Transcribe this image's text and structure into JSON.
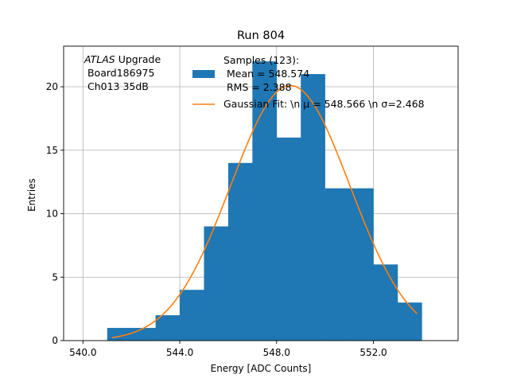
{
  "chart_data": {
    "type": "bar",
    "title": "Run 804",
    "xlabel": "Energy [ADC Counts]",
    "ylabel": "Entries",
    "xlim": [
      539.2,
      555.5
    ],
    "ylim": [
      0,
      23.2
    ],
    "x_ticks": [
      540,
      544,
      548,
      552
    ],
    "x_tick_labels": [
      "540.0",
      "544.0",
      "548.0",
      "552.0"
    ],
    "y_ticks": [
      0,
      5,
      10,
      15,
      20
    ],
    "y_tick_labels": [
      "0",
      "5",
      "10",
      "15",
      "20"
    ],
    "grid": true,
    "bar_color": "#1f77b4",
    "fit_color": "#ff7f0e",
    "bins": [
      {
        "x0": 541,
        "x1": 542,
        "count": 1
      },
      {
        "x0": 542,
        "x1": 543,
        "count": 1
      },
      {
        "x0": 543,
        "x1": 544,
        "count": 2
      },
      {
        "x0": 544,
        "x1": 545,
        "count": 4
      },
      {
        "x0": 545,
        "x1": 546,
        "count": 9
      },
      {
        "x0": 546,
        "x1": 547,
        "count": 14
      },
      {
        "x0": 547,
        "x1": 548,
        "count": 22
      },
      {
        "x0": 548,
        "x1": 549,
        "count": 16
      },
      {
        "x0": 549,
        "x1": 550,
        "count": 21
      },
      {
        "x0": 550,
        "x1": 551,
        "count": 12
      },
      {
        "x0": 551,
        "x1": 552,
        "count": 12
      },
      {
        "x0": 552,
        "x1": 553,
        "count": 6
      },
      {
        "x0": 553,
        "x1": 554,
        "count": 3
      }
    ],
    "fit": {
      "mean": 548.566,
      "sigma": 2.468,
      "amplitude": 20.1,
      "x_range": [
        541.2,
        553.8
      ]
    },
    "annotation": [
      "ATLAS",
      " Upgrade",
      " Board186975",
      " Ch013 35dB"
    ],
    "legend": {
      "placement": "top-right",
      "hist_lines": [
        "Samples (123):",
        " Mean = 548.574",
        " RMS = 2.388"
      ],
      "fit_label": "Gaussian Fit: \\n μ = 548.566 \\n σ=2.468"
    }
  }
}
